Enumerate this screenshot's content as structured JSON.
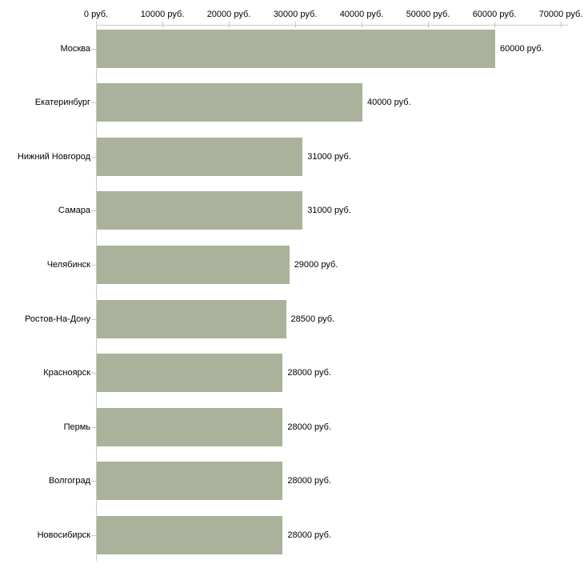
{
  "chart_data": {
    "type": "bar",
    "orientation": "horizontal",
    "title": "",
    "xlabel": "",
    "ylabel": "",
    "unit": "руб.",
    "categories": [
      "Москва",
      "Екатеринбург",
      "Нижний Новгород",
      "Самара",
      "Челябинск",
      "Ростов-На-Дону",
      "Красноярск",
      "Пермь",
      "Волгоград",
      "Новосибирск"
    ],
    "values": [
      60000,
      40000,
      31000,
      31000,
      29000,
      28500,
      28000,
      28000,
      28000,
      28000
    ],
    "value_labels": [
      "60000 руб.",
      "40000 руб.",
      "31000 руб.",
      "31000 руб.",
      "29000 руб.",
      "28500 руб.",
      "28000 руб.",
      "28000 руб.",
      "28000 руб.",
      "28000 руб."
    ],
    "x_axis": {
      "position": "top",
      "range": [
        0,
        70000
      ],
      "ticks": [
        0,
        10000,
        20000,
        30000,
        40000,
        50000,
        60000,
        70000
      ],
      "tick_labels": [
        "0 руб.",
        "10000 руб.",
        "20000 руб.",
        "30000 руб.",
        "40000 руб.",
        "50000 руб.",
        "60000 руб.",
        "70000 руб."
      ]
    },
    "grid": false,
    "legend": false,
    "colors": {
      "bar": "#abb29b",
      "axis_line": "#c8c8c8",
      "tick_mark": "#cccc99",
      "text": "#000000",
      "background": "#ffffff"
    }
  }
}
